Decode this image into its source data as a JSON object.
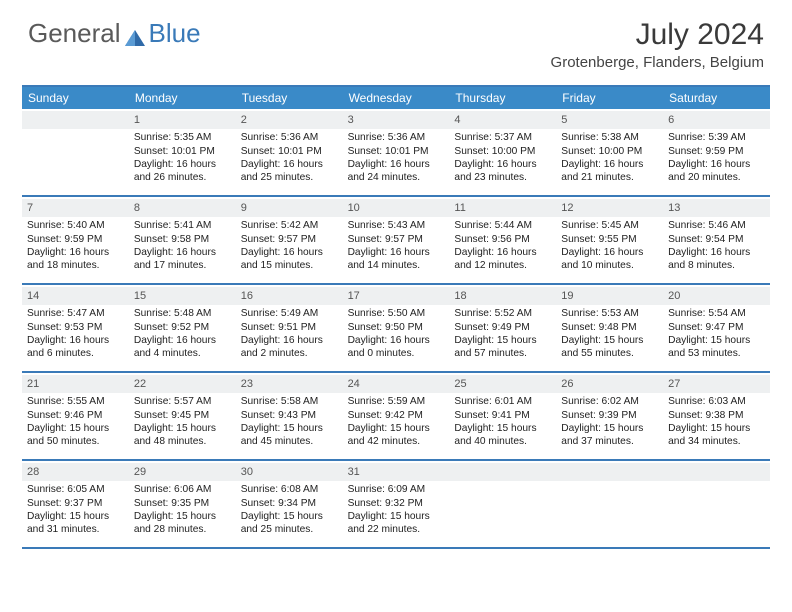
{
  "brand": {
    "part1": "General",
    "part2": "Blue"
  },
  "title": "July 2024",
  "location": "Grotenberge, Flanders, Belgium",
  "colors": {
    "header_bg": "#3a8ac8",
    "border": "#3a7ab8",
    "daynum_bg": "#eef0f1",
    "text": "#222222",
    "title_text": "#3a3a3a"
  },
  "dow": [
    "Sunday",
    "Monday",
    "Tuesday",
    "Wednesday",
    "Thursday",
    "Friday",
    "Saturday"
  ],
  "weeks": [
    [
      {
        "n": "",
        "lines": []
      },
      {
        "n": "1",
        "lines": [
          "Sunrise: 5:35 AM",
          "Sunset: 10:01 PM",
          "Daylight: 16 hours",
          "and 26 minutes."
        ]
      },
      {
        "n": "2",
        "lines": [
          "Sunrise: 5:36 AM",
          "Sunset: 10:01 PM",
          "Daylight: 16 hours",
          "and 25 minutes."
        ]
      },
      {
        "n": "3",
        "lines": [
          "Sunrise: 5:36 AM",
          "Sunset: 10:01 PM",
          "Daylight: 16 hours",
          "and 24 minutes."
        ]
      },
      {
        "n": "4",
        "lines": [
          "Sunrise: 5:37 AM",
          "Sunset: 10:00 PM",
          "Daylight: 16 hours",
          "and 23 minutes."
        ]
      },
      {
        "n": "5",
        "lines": [
          "Sunrise: 5:38 AM",
          "Sunset: 10:00 PM",
          "Daylight: 16 hours",
          "and 21 minutes."
        ]
      },
      {
        "n": "6",
        "lines": [
          "Sunrise: 5:39 AM",
          "Sunset: 9:59 PM",
          "Daylight: 16 hours",
          "and 20 minutes."
        ]
      }
    ],
    [
      {
        "n": "7",
        "lines": [
          "Sunrise: 5:40 AM",
          "Sunset: 9:59 PM",
          "Daylight: 16 hours",
          "and 18 minutes."
        ]
      },
      {
        "n": "8",
        "lines": [
          "Sunrise: 5:41 AM",
          "Sunset: 9:58 PM",
          "Daylight: 16 hours",
          "and 17 minutes."
        ]
      },
      {
        "n": "9",
        "lines": [
          "Sunrise: 5:42 AM",
          "Sunset: 9:57 PM",
          "Daylight: 16 hours",
          "and 15 minutes."
        ]
      },
      {
        "n": "10",
        "lines": [
          "Sunrise: 5:43 AM",
          "Sunset: 9:57 PM",
          "Daylight: 16 hours",
          "and 14 minutes."
        ]
      },
      {
        "n": "11",
        "lines": [
          "Sunrise: 5:44 AM",
          "Sunset: 9:56 PM",
          "Daylight: 16 hours",
          "and 12 minutes."
        ]
      },
      {
        "n": "12",
        "lines": [
          "Sunrise: 5:45 AM",
          "Sunset: 9:55 PM",
          "Daylight: 16 hours",
          "and 10 minutes."
        ]
      },
      {
        "n": "13",
        "lines": [
          "Sunrise: 5:46 AM",
          "Sunset: 9:54 PM",
          "Daylight: 16 hours",
          "and 8 minutes."
        ]
      }
    ],
    [
      {
        "n": "14",
        "lines": [
          "Sunrise: 5:47 AM",
          "Sunset: 9:53 PM",
          "Daylight: 16 hours",
          "and 6 minutes."
        ]
      },
      {
        "n": "15",
        "lines": [
          "Sunrise: 5:48 AM",
          "Sunset: 9:52 PM",
          "Daylight: 16 hours",
          "and 4 minutes."
        ]
      },
      {
        "n": "16",
        "lines": [
          "Sunrise: 5:49 AM",
          "Sunset: 9:51 PM",
          "Daylight: 16 hours",
          "and 2 minutes."
        ]
      },
      {
        "n": "17",
        "lines": [
          "Sunrise: 5:50 AM",
          "Sunset: 9:50 PM",
          "Daylight: 16 hours",
          "and 0 minutes."
        ]
      },
      {
        "n": "18",
        "lines": [
          "Sunrise: 5:52 AM",
          "Sunset: 9:49 PM",
          "Daylight: 15 hours",
          "and 57 minutes."
        ]
      },
      {
        "n": "19",
        "lines": [
          "Sunrise: 5:53 AM",
          "Sunset: 9:48 PM",
          "Daylight: 15 hours",
          "and 55 minutes."
        ]
      },
      {
        "n": "20",
        "lines": [
          "Sunrise: 5:54 AM",
          "Sunset: 9:47 PM",
          "Daylight: 15 hours",
          "and 53 minutes."
        ]
      }
    ],
    [
      {
        "n": "21",
        "lines": [
          "Sunrise: 5:55 AM",
          "Sunset: 9:46 PM",
          "Daylight: 15 hours",
          "and 50 minutes."
        ]
      },
      {
        "n": "22",
        "lines": [
          "Sunrise: 5:57 AM",
          "Sunset: 9:45 PM",
          "Daylight: 15 hours",
          "and 48 minutes."
        ]
      },
      {
        "n": "23",
        "lines": [
          "Sunrise: 5:58 AM",
          "Sunset: 9:43 PM",
          "Daylight: 15 hours",
          "and 45 minutes."
        ]
      },
      {
        "n": "24",
        "lines": [
          "Sunrise: 5:59 AM",
          "Sunset: 9:42 PM",
          "Daylight: 15 hours",
          "and 42 minutes."
        ]
      },
      {
        "n": "25",
        "lines": [
          "Sunrise: 6:01 AM",
          "Sunset: 9:41 PM",
          "Daylight: 15 hours",
          "and 40 minutes."
        ]
      },
      {
        "n": "26",
        "lines": [
          "Sunrise: 6:02 AM",
          "Sunset: 9:39 PM",
          "Daylight: 15 hours",
          "and 37 minutes."
        ]
      },
      {
        "n": "27",
        "lines": [
          "Sunrise: 6:03 AM",
          "Sunset: 9:38 PM",
          "Daylight: 15 hours",
          "and 34 minutes."
        ]
      }
    ],
    [
      {
        "n": "28",
        "lines": [
          "Sunrise: 6:05 AM",
          "Sunset: 9:37 PM",
          "Daylight: 15 hours",
          "and 31 minutes."
        ]
      },
      {
        "n": "29",
        "lines": [
          "Sunrise: 6:06 AM",
          "Sunset: 9:35 PM",
          "Daylight: 15 hours",
          "and 28 minutes."
        ]
      },
      {
        "n": "30",
        "lines": [
          "Sunrise: 6:08 AM",
          "Sunset: 9:34 PM",
          "Daylight: 15 hours",
          "and 25 minutes."
        ]
      },
      {
        "n": "31",
        "lines": [
          "Sunrise: 6:09 AM",
          "Sunset: 9:32 PM",
          "Daylight: 15 hours",
          "and 22 minutes."
        ]
      },
      {
        "n": "",
        "lines": []
      },
      {
        "n": "",
        "lines": []
      },
      {
        "n": "",
        "lines": []
      }
    ]
  ]
}
